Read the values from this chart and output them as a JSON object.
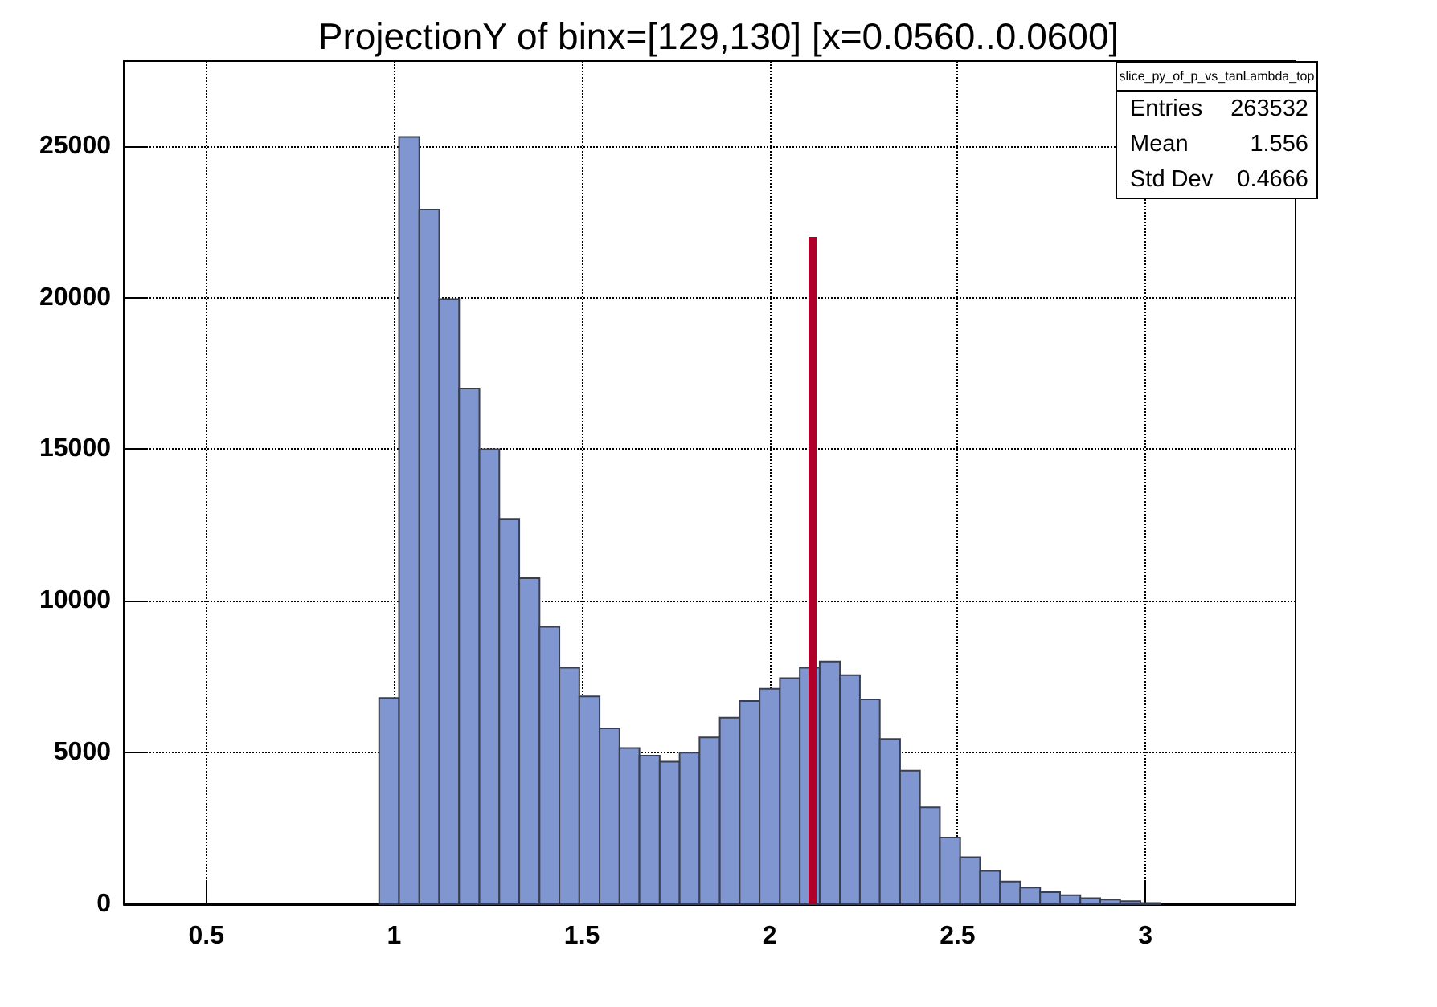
{
  "chart_data": {
    "type": "histogram",
    "title": "ProjectionY of binx=[129,130] [x=0.0560..0.0600]",
    "bins": [
      0.96,
      1.013,
      1.067,
      1.12,
      1.173,
      1.227,
      1.28,
      1.333,
      1.387,
      1.44,
      1.493,
      1.547,
      1.6,
      1.653,
      1.707,
      1.76,
      1.813,
      1.867,
      1.92,
      1.973,
      2.027,
      2.08,
      2.133,
      2.187,
      2.24,
      2.293,
      2.347,
      2.4,
      2.453,
      2.507,
      2.56,
      2.613,
      2.667,
      2.72,
      2.773,
      2.827,
      2.88,
      2.933,
      2.987,
      3.04,
      3.093,
      3.147,
      3.2
    ],
    "values": [
      6800,
      25300,
      22900,
      19950,
      17000,
      15000,
      12700,
      10750,
      9150,
      7800,
      6850,
      5800,
      5150,
      4900,
      4700,
      5000,
      5500,
      6150,
      6700,
      7100,
      7450,
      7800,
      8000,
      7550,
      6750,
      5450,
      4400,
      3200,
      2200,
      1550,
      1100,
      750,
      550,
      400,
      300,
      200,
      150,
      100,
      40,
      null,
      null,
      null
    ],
    "color": "#7f96d0",
    "series": [
      {
        "type": "line",
        "color": "#b0002a",
        "x": [
          2.114,
          2.114
        ],
        "values": [
          0,
          22000
        ]
      }
    ],
    "xlim": [
      0.28,
      3.4
    ],
    "xticks": [
      0.5,
      1,
      1.5,
      2,
      2.5,
      3
    ],
    "ylim": [
      0,
      27800
    ],
    "yticks": [
      0,
      5000,
      10000,
      15000,
      20000,
      25000
    ],
    "grid": true,
    "line_style": "solid",
    "marker": "none",
    "annotations": [
      "slice_py_of_p_vs_tanLambda_top",
      "Entries 263532",
      "Mean 1.556",
      "Std Dev 0.4666"
    ]
  }
}
